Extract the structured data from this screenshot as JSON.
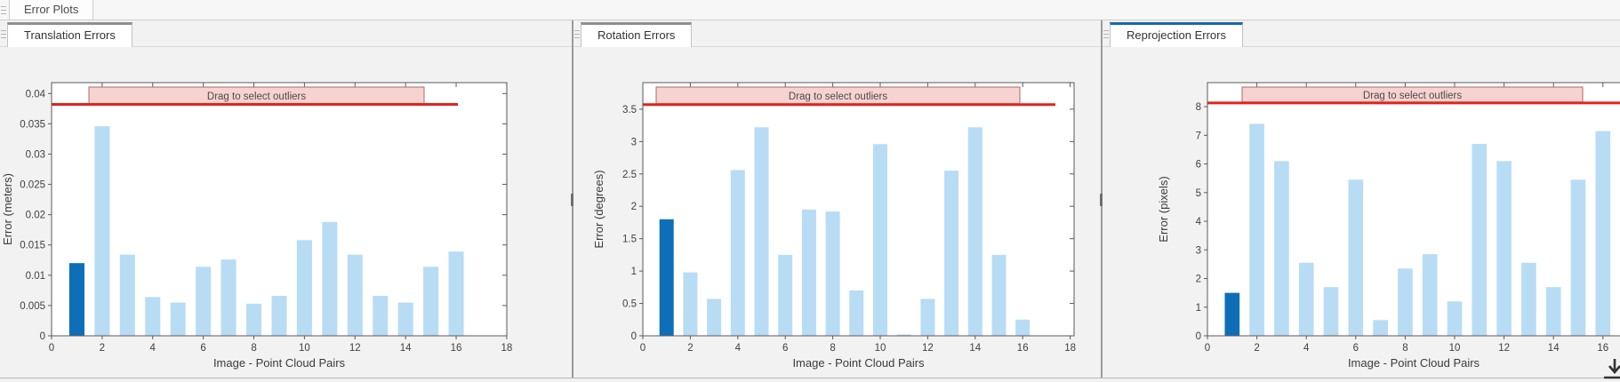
{
  "window": {
    "document_tab": "Error Plots",
    "icons": {
      "doc_grip": "grip-icon",
      "panel_grip": "grip-icon",
      "export": "export-figure-icon"
    }
  },
  "colors": {
    "bar_light": "#b9dcf5",
    "bar_selected": "#0e6fb8",
    "threshold_red": "#e2231e",
    "band_fill": "#f6d3d1",
    "band_stroke": "#ab6a64",
    "axis": "#5a5a5a",
    "tab_accent_gray": "#8f8f8f",
    "tab_accent_blue": "#1668b0"
  },
  "chart_data": [
    {
      "type": "bar",
      "panel_tab": "Translation Errors",
      "xlabel": "Image - Point Cloud Pairs",
      "ylabel": "Error (meters)",
      "band_label": "Drag to select outliers",
      "categories": [
        1,
        2,
        3,
        4,
        5,
        6,
        7,
        8,
        9,
        10,
        11,
        12,
        13,
        14,
        15,
        16
      ],
      "values": [
        0.012,
        0.0346,
        0.0134,
        0.0064,
        0.0055,
        0.0114,
        0.0126,
        0.0053,
        0.0066,
        0.0158,
        0.0188,
        0.0134,
        0.0066,
        0.0055,
        0.0114,
        0.0139
      ],
      "selected_bar": 1,
      "threshold": 0.0382,
      "ylim": [
        0,
        0.0418
      ],
      "yticks": [
        0,
        0.005,
        0.01,
        0.015,
        0.02,
        0.025,
        0.03,
        0.035,
        0.04
      ],
      "ytick_labels": [
        "0",
        "0.005",
        "0.01",
        "0.015",
        "0.02",
        "0.025",
        "0.03",
        "0.035",
        "0.04"
      ],
      "xticks": [
        0,
        2,
        4,
        6,
        8,
        10,
        12,
        14,
        16,
        18
      ],
      "grid": false,
      "legend": "none"
    },
    {
      "type": "bar",
      "panel_tab": "Rotation Errors",
      "xlabel": "Image - Point Cloud Pairs",
      "ylabel": "Error (degrees)",
      "band_label": "Drag to select outliers",
      "categories": [
        1,
        2,
        3,
        4,
        5,
        6,
        7,
        8,
        9,
        10,
        11,
        12,
        13,
        14,
        15,
        16
      ],
      "values": [
        1.8,
        0.98,
        0.57,
        2.56,
        3.22,
        1.25,
        1.95,
        1.92,
        0.7,
        2.96,
        0.02,
        0.57,
        2.55,
        3.22,
        1.25,
        0.25
      ],
      "selected_bar": 1,
      "threshold": 3.57,
      "ylim": [
        0,
        3.91
      ],
      "yticks": [
        0,
        0.5,
        1,
        1.5,
        2,
        2.5,
        3,
        3.5
      ],
      "ytick_labels": [
        "0",
        "0.5",
        "1",
        "1.5",
        "2",
        "2.5",
        "3",
        "3.5"
      ],
      "xticks": [
        0,
        2,
        4,
        6,
        8,
        10,
        12,
        14,
        16,
        18
      ],
      "grid": false,
      "legend": "none"
    },
    {
      "type": "bar",
      "panel_tab": "Reprojection Errors",
      "xlabel": "Image - Point Cloud Pairs",
      "ylabel": "Error (pixels)",
      "band_label": "Drag to select outliers",
      "categories": [
        1,
        2,
        3,
        4,
        5,
        6,
        7,
        8,
        9,
        10,
        11,
        12,
        13,
        14,
        15,
        16
      ],
      "values": [
        1.5,
        7.4,
        6.1,
        2.55,
        1.7,
        5.45,
        0.55,
        2.35,
        2.85,
        1.2,
        6.7,
        6.1,
        2.55,
        1.7,
        5.45,
        7.15
      ],
      "selected_bar": 1,
      "threshold": 8.13,
      "ylim": [
        0,
        8.84
      ],
      "yticks": [
        0,
        1,
        2,
        3,
        4,
        5,
        6,
        7,
        8
      ],
      "ytick_labels": [
        "0",
        "1",
        "2",
        "3",
        "4",
        "5",
        "6",
        "7",
        "8"
      ],
      "xticks": [
        0,
        2,
        4,
        6,
        8,
        10,
        12,
        14,
        16
      ],
      "grid": false,
      "legend": "none"
    }
  ]
}
